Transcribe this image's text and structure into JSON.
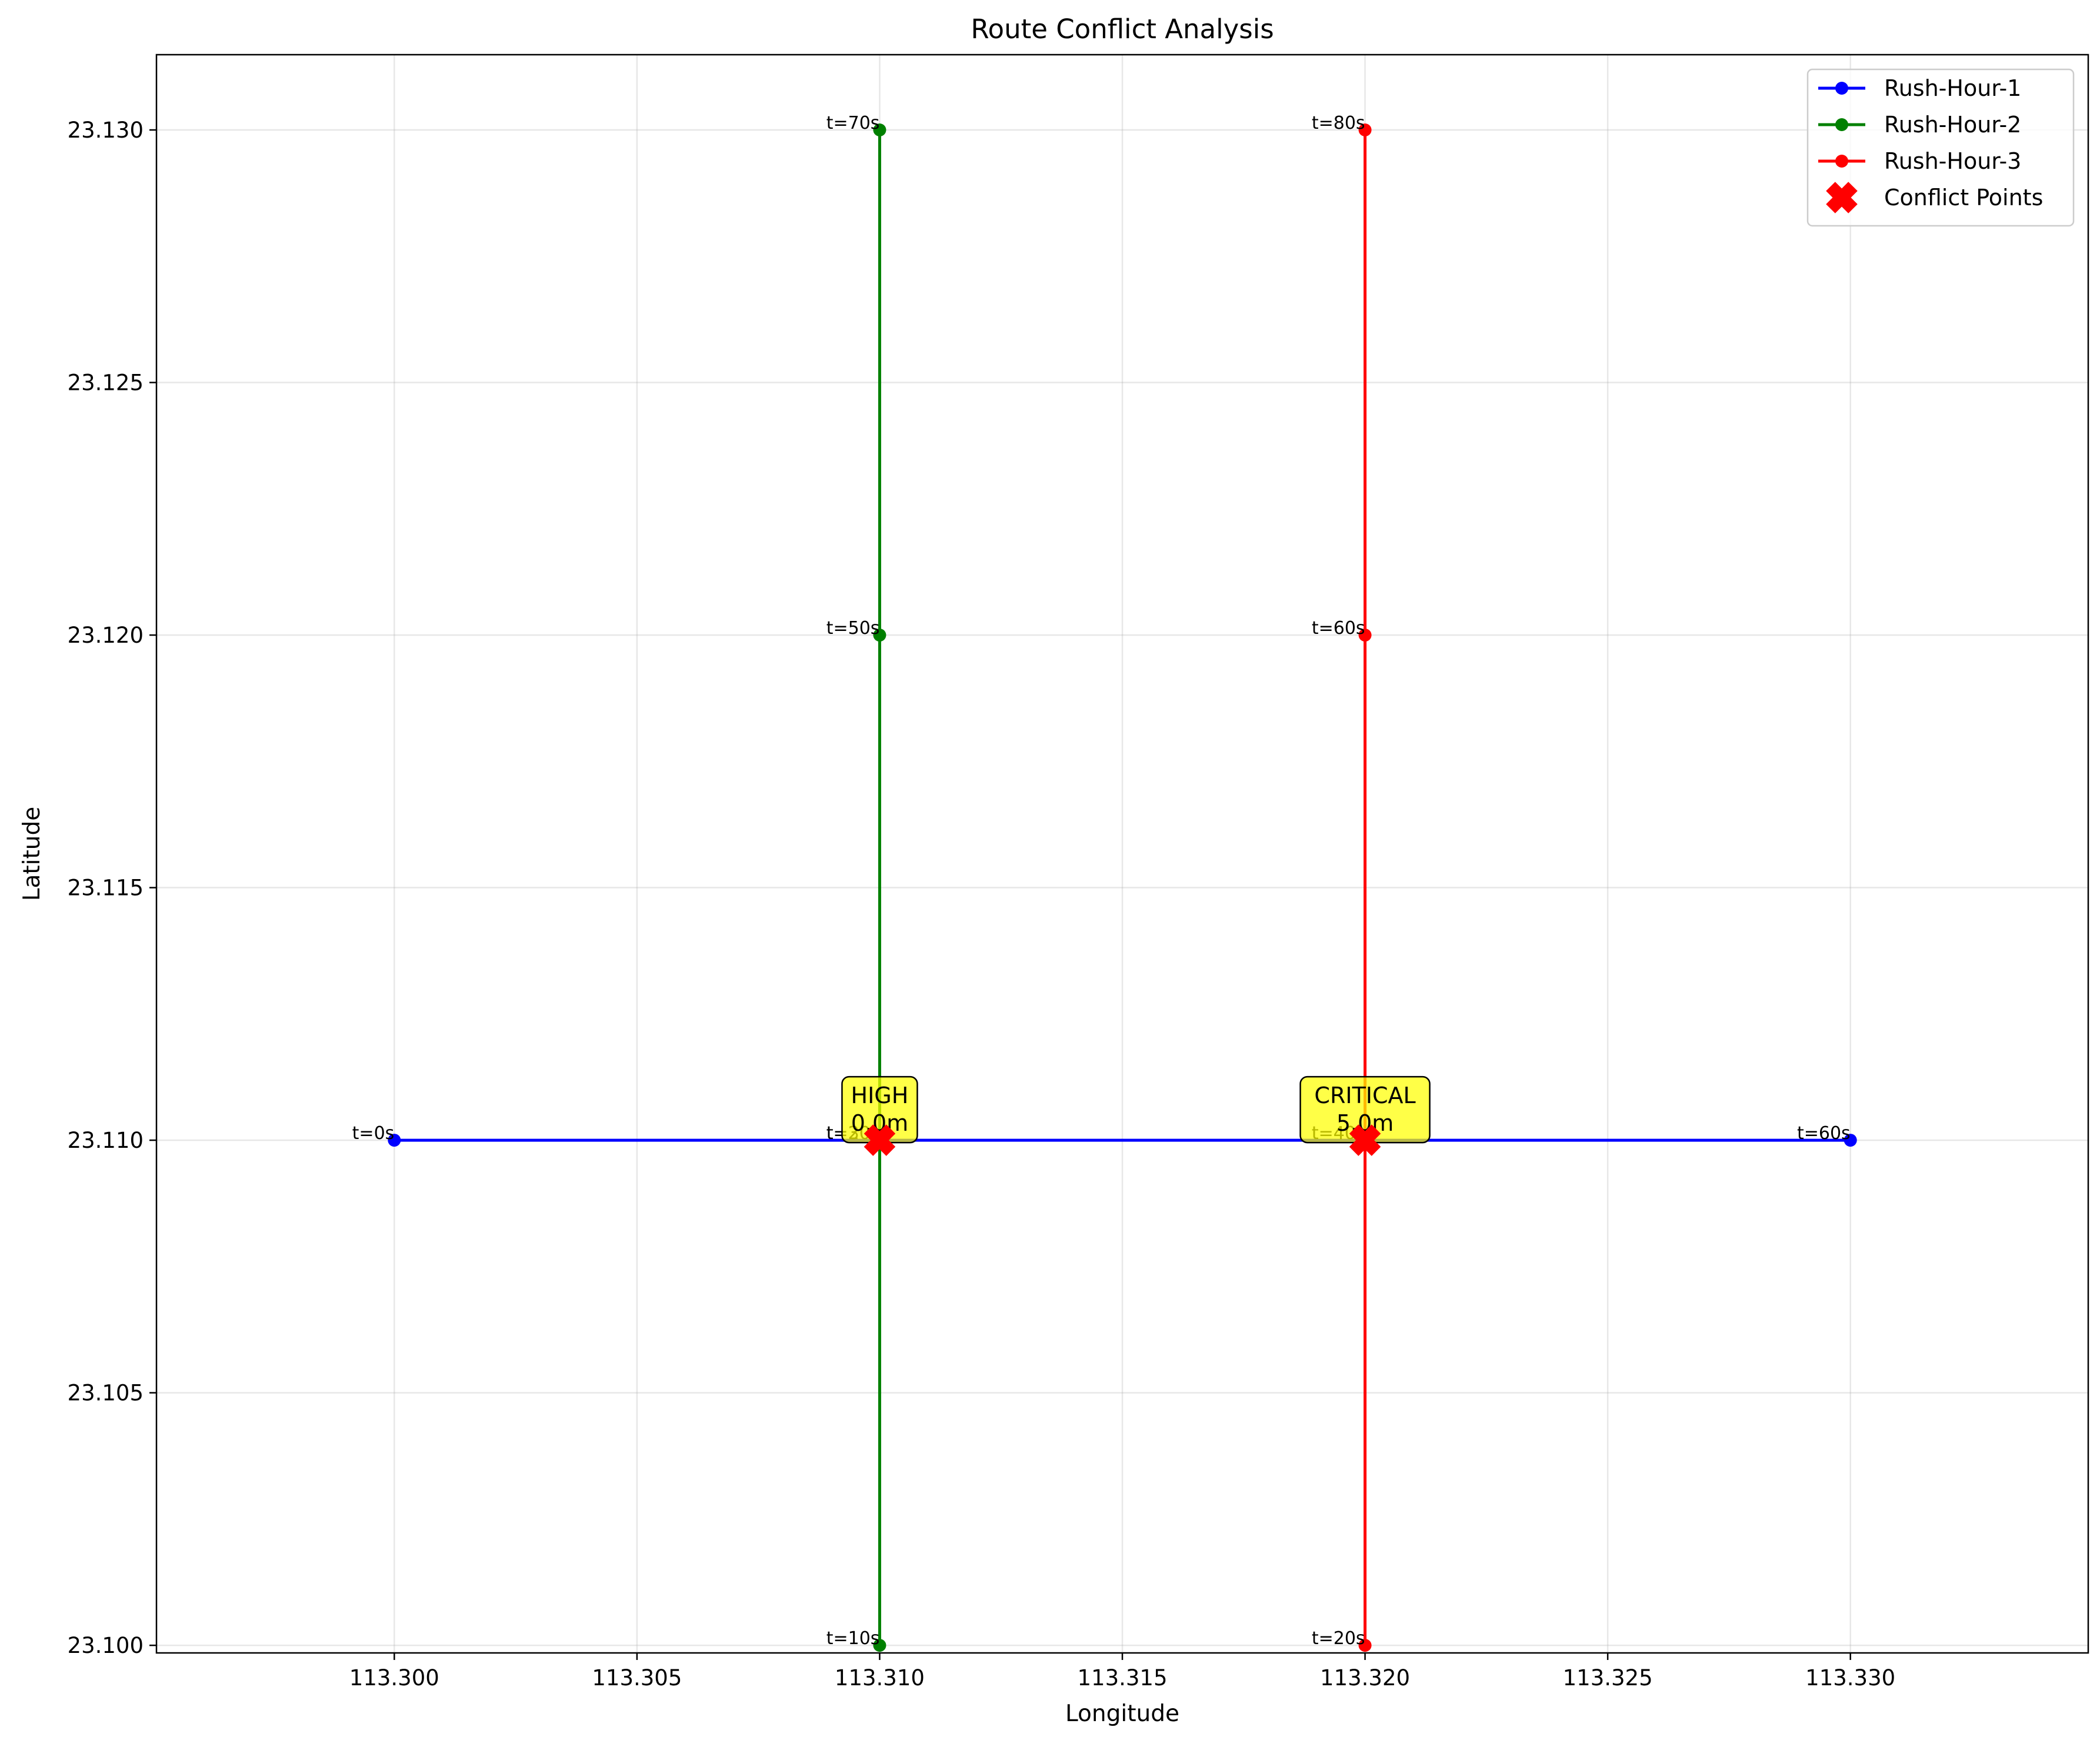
{
  "chart_data": {
    "type": "line",
    "title": "Route Conflict Analysis",
    "xlabel": "Longitude",
    "ylabel": "Latitude",
    "xlim": [
      113.2951,
      113.3349
    ],
    "ylim": [
      23.09985,
      23.13149
    ],
    "xticks": [
      113.3,
      113.305,
      113.31,
      113.315,
      113.32,
      113.325,
      113.33
    ],
    "xtick_labels": [
      "113.300",
      "113.305",
      "113.310",
      "113.315",
      "113.320",
      "113.325",
      "113.330"
    ],
    "yticks": [
      23.1,
      23.105,
      23.11,
      23.115,
      23.12,
      23.125,
      23.13
    ],
    "ytick_labels": [
      "23.100",
      "23.105",
      "23.110",
      "23.115",
      "23.120",
      "23.125",
      "23.130"
    ],
    "grid": true,
    "legend_position": "top-right",
    "series": [
      {
        "name": "Rush-Hour-1",
        "color": "#0000ff",
        "x": [
          113.3,
          113.31,
          113.32,
          113.33
        ],
        "y": [
          23.11,
          23.11,
          23.11,
          23.11
        ],
        "labels": [
          "t=0s",
          "t=20s",
          "t=40s",
          "t=60s"
        ]
      },
      {
        "name": "Rush-Hour-2",
        "color": "#008000",
        "x": [
          113.31,
          113.31,
          113.31,
          113.31
        ],
        "y": [
          23.1,
          23.11,
          23.12,
          23.13
        ],
        "labels": [
          "t=10s",
          "t=30s",
          "t=50s",
          "t=70s"
        ]
      },
      {
        "name": "Rush-Hour-3",
        "color": "#ff0000",
        "x": [
          113.32,
          113.32,
          113.32,
          113.32
        ],
        "y": [
          23.1,
          23.11,
          23.12,
          23.13
        ],
        "labels": [
          "t=20s",
          "t=40s",
          "t=60s",
          "t=80s"
        ]
      }
    ],
    "conflicts": {
      "name": "Conflict Points",
      "color": "#ff0000",
      "marker": "X",
      "points": [
        {
          "x": 113.31,
          "y": 23.11,
          "severity": "HIGH",
          "distance": "0.0m"
        },
        {
          "x": 113.32,
          "y": 23.11,
          "severity": "CRITICAL",
          "distance": "5.0m"
        }
      ],
      "box_color": "#ffff00"
    }
  }
}
